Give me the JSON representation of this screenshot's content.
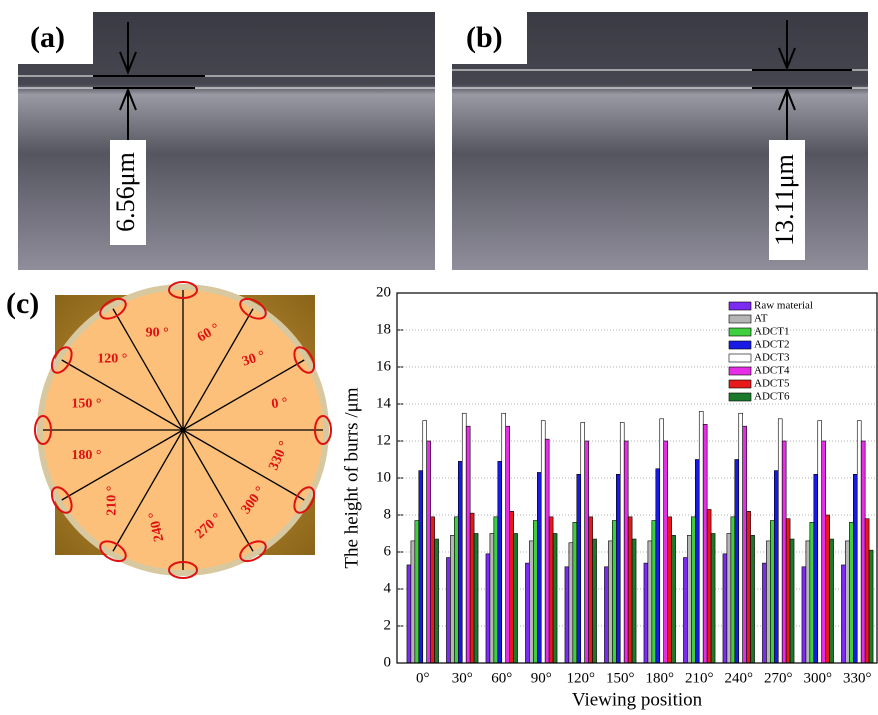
{
  "panels": {
    "a": {
      "label": "(a)",
      "measurement": "6.56μm"
    },
    "b": {
      "label": "(b)",
      "measurement": "13.11μm"
    },
    "c": {
      "label": "(c)"
    }
  },
  "dial_labels": [
    "0 °",
    "30 °",
    "60 °",
    "90 °",
    "120 °",
    "150 °",
    "180 °",
    "210 °",
    "240 °",
    "270 °",
    "300 °",
    "330 °"
  ],
  "chart_data": {
    "type": "bar",
    "x_label": "Viewing position",
    "y_label": "The height of burrs /μm",
    "categories": [
      "0°",
      "30°",
      "60°",
      "90°",
      "120°",
      "150°",
      "180°",
      "210°",
      "240°",
      "270°",
      "300°",
      "330°"
    ],
    "series": [
      {
        "name": "Raw material",
        "color": "#7b2cf0",
        "values": [
          5.3,
          5.7,
          5.9,
          5.4,
          5.2,
          5.2,
          5.4,
          5.7,
          5.9,
          5.4,
          5.2,
          5.3
        ]
      },
      {
        "name": "AT",
        "color": "#b5b5b5",
        "values": [
          6.6,
          6.9,
          7.0,
          6.6,
          6.5,
          6.6,
          6.6,
          6.9,
          7.0,
          6.6,
          6.6,
          6.6
        ]
      },
      {
        "name": "ADCT1",
        "color": "#3fcf3f",
        "values": [
          7.7,
          7.9,
          7.9,
          7.7,
          7.6,
          7.7,
          7.7,
          7.9,
          7.9,
          7.7,
          7.6,
          7.6
        ]
      },
      {
        "name": "ADCT2",
        "color": "#1a1ae6",
        "values": [
          10.4,
          10.9,
          10.9,
          10.3,
          10.2,
          10.2,
          10.5,
          11.0,
          11.0,
          10.4,
          10.2,
          10.2
        ]
      },
      {
        "name": "ADCT3",
        "color": "#ffffff",
        "values": [
          13.1,
          13.5,
          13.5,
          13.1,
          13.0,
          13.0,
          13.2,
          13.6,
          13.5,
          13.2,
          13.1,
          13.1
        ]
      },
      {
        "name": "ADCT4",
        "color": "#e62ee6",
        "values": [
          12.0,
          12.8,
          12.8,
          12.1,
          12.0,
          12.0,
          12.0,
          12.9,
          12.8,
          12.0,
          12.0,
          12.0
        ]
      },
      {
        "name": "ADCT5",
        "color": "#e61a1a",
        "values": [
          7.9,
          8.1,
          8.2,
          7.9,
          7.9,
          7.9,
          7.9,
          8.3,
          8.2,
          7.8,
          8.0,
          7.8
        ]
      },
      {
        "name": "ADCT6",
        "color": "#1a7a2a",
        "values": [
          6.7,
          7.0,
          7.0,
          7.0,
          6.7,
          6.7,
          6.9,
          7.0,
          6.9,
          6.7,
          6.7,
          6.1
        ]
      }
    ],
    "ylim": [
      0,
      20
    ],
    "yticks": [
      0,
      2,
      4,
      6,
      8,
      10,
      12,
      14,
      16,
      18,
      20
    ],
    "grid": true
  }
}
